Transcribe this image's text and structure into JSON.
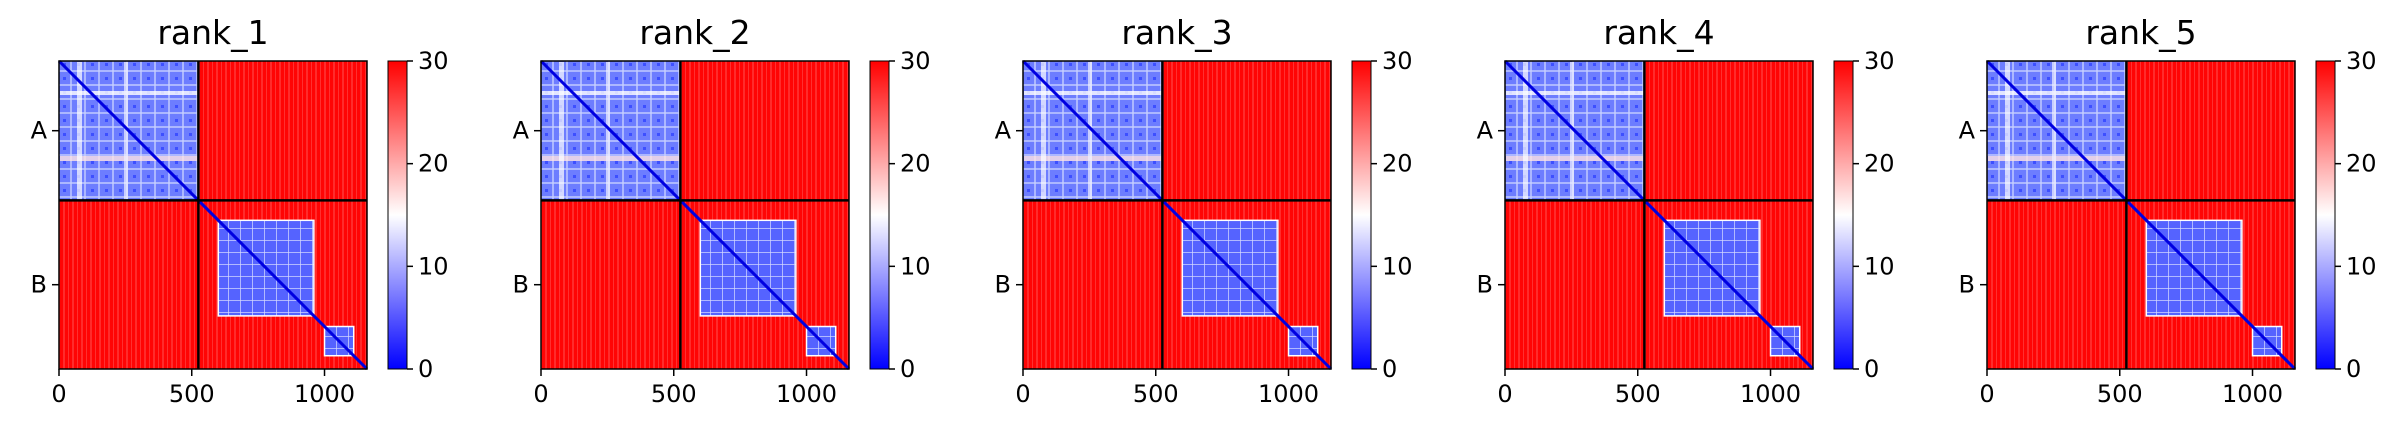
{
  "chart_data": {
    "type": "heatmap",
    "x_ticks": [
      0,
      500,
      1000
    ],
    "y_labels": [
      "A",
      "B"
    ],
    "xlim": [
      0,
      1160
    ],
    "ylim": [
      1160,
      0
    ],
    "chain_boundary": 525,
    "colorbar": {
      "ticks": [
        0,
        10,
        20,
        30
      ],
      "vmin": 0,
      "vmax": 30,
      "colors": [
        "#0000ff",
        "#ffffff",
        "#ff0000"
      ]
    },
    "panels": [
      {
        "title": "rank_1"
      },
      {
        "title": "rank_2"
      },
      {
        "title": "rank_3"
      },
      {
        "title": "rank_4"
      },
      {
        "title": "rank_5"
      }
    ]
  }
}
